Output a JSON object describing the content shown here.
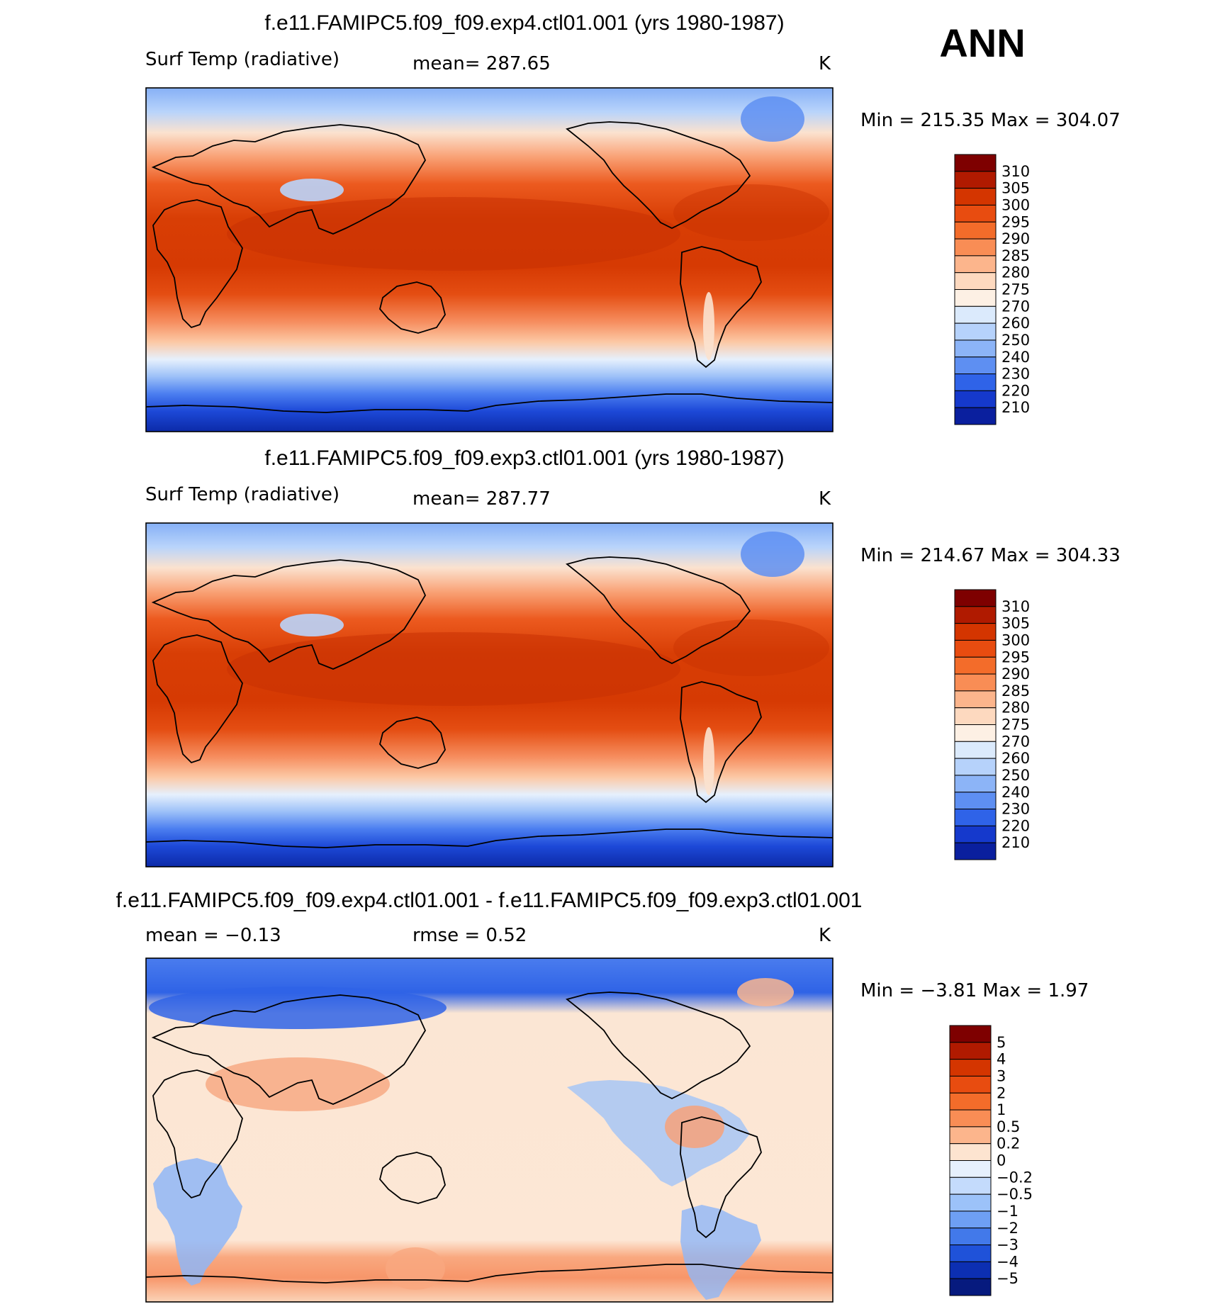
{
  "season": "ANN",
  "panels": [
    {
      "title": "f.e11.FAMIPC5.f09_f09.exp4.ctl01.001 (yrs 1980-1987)",
      "variable": "Surf Temp (radiative)",
      "stat_text": "mean=  287.65",
      "stat2_text": "",
      "units": "K",
      "minmax_text": "Min  =  215.35  Max  =  304.07",
      "type": "abs"
    },
    {
      "title": "f.e11.FAMIPC5.f09_f09.exp3.ctl01.001 (yrs 1980-1987)",
      "variable": "Surf Temp (radiative)",
      "stat_text": "mean=  287.77",
      "stat2_text": "",
      "units": "K",
      "minmax_text": "Min  =  214.67  Max  =  304.33",
      "type": "abs"
    },
    {
      "title": "f.e11.FAMIPC5.f09_f09.exp4.ctl01.001 - f.e11.FAMIPC5.f09_f09.exp3.ctl01.001",
      "variable": "mean  =    −0.13",
      "stat_text": "rmse  =     0.52",
      "stat2_text": "",
      "units": "K",
      "minmax_text": "Min  =    −3.81  Max  =     1.97",
      "type": "diff"
    }
  ],
  "abs_scale": {
    "labels": [
      "310",
      "305",
      "300",
      "295",
      "290",
      "285",
      "280",
      "275",
      "270",
      "260",
      "250",
      "240",
      "230",
      "220",
      "210"
    ],
    "colors": [
      "#7e0000",
      "#b01a00",
      "#d43500",
      "#e84c10",
      "#f36c2a",
      "#f98d55",
      "#fcb58c",
      "#fdd9bf",
      "#fdf0e4",
      "#dbeafc",
      "#b6d2fb",
      "#8cb4f7",
      "#5e8ff2",
      "#2f63e8",
      "#1539cc",
      "#0a1f9e"
    ]
  },
  "diff_scale": {
    "labels": [
      "5",
      "4",
      "3",
      "2",
      "1",
      "0.5",
      "0.2",
      "0",
      "−0.2",
      "−0.5",
      "−1",
      "−2",
      "−3",
      "−4",
      "−5"
    ],
    "colors": [
      "#7e0000",
      "#b01a00",
      "#d43500",
      "#e84c10",
      "#f36c2a",
      "#f98d55",
      "#fcb58c",
      "#fde4d0",
      "#e6f0fd",
      "#c4dbfc",
      "#9cc2f9",
      "#6e9ff4",
      "#4279ea",
      "#1f52d9",
      "#0c2fb2",
      "#061a7e"
    ]
  }
}
